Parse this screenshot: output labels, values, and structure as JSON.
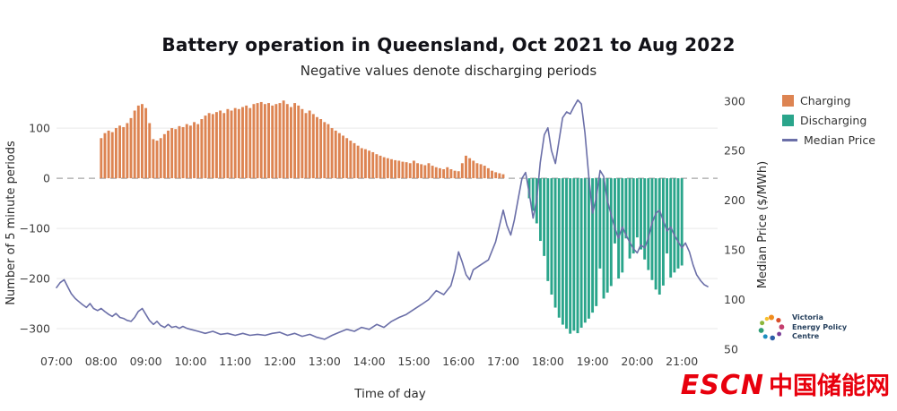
{
  "chart": {
    "title": "Battery operation in Queensland, Oct 2021 to Aug 2022",
    "subtitle": "Negative values denote discharging periods"
  },
  "axes": {
    "left": {
      "label": "Number of 5 minute periods",
      "ticks": [
        {
          "label": "100",
          "value": 100
        },
        {
          "label": "0",
          "value": 0
        },
        {
          "label": "−100",
          "value": -100
        },
        {
          "label": "−200",
          "value": -200
        },
        {
          "label": "−300",
          "value": -300
        }
      ]
    },
    "right": {
      "label": "Median Price ($/MWh)",
      "ticks": [
        {
          "label": "300",
          "value": 300
        },
        {
          "label": "250",
          "value": 250
        },
        {
          "label": "200",
          "value": 200
        },
        {
          "label": "150",
          "value": 150
        },
        {
          "label": "100",
          "value": 100
        },
        {
          "label": "50",
          "value": 50
        }
      ]
    },
    "x": {
      "label": "Time of day",
      "ticks": [
        {
          "label": "07:00",
          "value": 7
        },
        {
          "label": "08:00",
          "value": 8
        },
        {
          "label": "09:00",
          "value": 9
        },
        {
          "label": "10:00",
          "value": 10
        },
        {
          "label": "11:00",
          "value": 11
        },
        {
          "label": "12:00",
          "value": 12
        },
        {
          "label": "13:00",
          "value": 13
        },
        {
          "label": "14:00",
          "value": 14
        },
        {
          "label": "15:00",
          "value": 15
        },
        {
          "label": "16:00",
          "value": 16
        },
        {
          "label": "17:00",
          "value": 17
        },
        {
          "label": "18:00",
          "value": 18
        },
        {
          "label": "19:00",
          "value": 19
        },
        {
          "label": "20:00",
          "value": 20
        },
        {
          "label": "21:00",
          "value": 21
        }
      ]
    }
  },
  "legend": {
    "items": [
      {
        "label": "Charging",
        "color": "#dd8452",
        "type": "swatch"
      },
      {
        "label": "Discharging",
        "color": "#2aa58b",
        "type": "swatch"
      },
      {
        "label": "Median Price",
        "color": "#6b6fa8",
        "type": "line"
      }
    ]
  },
  "chart_data": {
    "type": "bar+line",
    "title": "Battery operation in Queensland, Oct 2021 to Aug 2022",
    "xlabel": "Time of day",
    "ylabel_left": "Number of 5 minute periods",
    "ylabel_right": "Median Price ($/MWh)",
    "xlim": [
      7.0,
      21.8
    ],
    "ylim_left": [
      -341,
      168
    ],
    "ylim_right": [
      50,
      307
    ],
    "grid": "horizontal",
    "zero_line": "dashed",
    "legend_position": "top-right-outside",
    "charging": {
      "name": "Charging",
      "units": "number of 5 minute periods",
      "start_hour": 8.0,
      "interval_min": 5,
      "color": "#dd8452",
      "values": [
        80,
        90,
        95,
        92,
        100,
        105,
        102,
        110,
        120,
        135,
        145,
        148,
        140,
        110,
        78,
        75,
        80,
        88,
        95,
        100,
        98,
        104,
        102,
        108,
        105,
        112,
        108,
        118,
        125,
        130,
        128,
        132,
        135,
        130,
        138,
        135,
        140,
        138,
        142,
        145,
        140,
        148,
        150,
        152,
        148,
        150,
        145,
        148,
        150,
        155,
        148,
        142,
        150,
        145,
        138,
        130,
        135,
        128,
        122,
        118,
        112,
        108,
        100,
        95,
        90,
        85,
        80,
        75,
        70,
        65,
        60,
        58,
        55,
        52,
        48,
        45,
        42,
        40,
        38,
        36,
        35,
        33,
        32,
        30,
        35,
        30,
        28,
        26,
        30,
        25,
        22,
        20,
        18,
        22,
        18,
        15,
        14,
        30,
        45,
        40,
        35,
        30,
        28,
        25,
        20,
        15,
        12,
        10,
        8
      ]
    },
    "discharging": {
      "name": "Discharging",
      "units": "number of 5 minute periods (negative = discharging)",
      "start_hour": 17.5833,
      "interval_min": 5,
      "color": "#2aa58b",
      "values": [
        -40,
        -65,
        -90,
        -125,
        -155,
        -205,
        -232,
        -258,
        -278,
        -292,
        -300,
        -310,
        -304,
        -309,
        -298,
        -288,
        -280,
        -268,
        -255,
        -180,
        -240,
        -228,
        -215,
        -130,
        -200,
        -188,
        -120,
        -160,
        -150,
        -118,
        -142,
        -162,
        -183,
        -203,
        -222,
        -232,
        -214,
        -150,
        -198,
        -188,
        -180,
        -174
      ]
    },
    "median_price": {
      "name": "Median Price",
      "units": "$/MWh",
      "color": "#6b6fa8",
      "points": [
        [
          7.0,
          112
        ],
        [
          7.08,
          117
        ],
        [
          7.17,
          120
        ],
        [
          7.25,
          113
        ],
        [
          7.33,
          106
        ],
        [
          7.42,
          101
        ],
        [
          7.5,
          98
        ],
        [
          7.58,
          95
        ],
        [
          7.67,
          92
        ],
        [
          7.75,
          96
        ],
        [
          7.83,
          91
        ],
        [
          7.92,
          89
        ],
        [
          8.0,
          91
        ],
        [
          8.08,
          88
        ],
        [
          8.17,
          85
        ],
        [
          8.25,
          83
        ],
        [
          8.33,
          86
        ],
        [
          8.42,
          82
        ],
        [
          8.5,
          81
        ],
        [
          8.58,
          79
        ],
        [
          8.67,
          78
        ],
        [
          8.75,
          82
        ],
        [
          8.83,
          88
        ],
        [
          8.92,
          91
        ],
        [
          9.0,
          85
        ],
        [
          9.08,
          79
        ],
        [
          9.17,
          75
        ],
        [
          9.25,
          78
        ],
        [
          9.33,
          74
        ],
        [
          9.42,
          72
        ],
        [
          9.5,
          75
        ],
        [
          9.58,
          72
        ],
        [
          9.67,
          73
        ],
        [
          9.75,
          71
        ],
        [
          9.83,
          73
        ],
        [
          9.92,
          71
        ],
        [
          10.0,
          70
        ],
        [
          10.17,
          68
        ],
        [
          10.33,
          66
        ],
        [
          10.5,
          68
        ],
        [
          10.67,
          65
        ],
        [
          10.83,
          66
        ],
        [
          11.0,
          64
        ],
        [
          11.17,
          66
        ],
        [
          11.33,
          64
        ],
        [
          11.5,
          65
        ],
        [
          11.67,
          64
        ],
        [
          11.83,
          66
        ],
        [
          12.0,
          67
        ],
        [
          12.17,
          64
        ],
        [
          12.33,
          66
        ],
        [
          12.5,
          63
        ],
        [
          12.67,
          65
        ],
        [
          12.83,
          62
        ],
        [
          13.0,
          60
        ],
        [
          13.17,
          64
        ],
        [
          13.33,
          67
        ],
        [
          13.5,
          70
        ],
        [
          13.67,
          68
        ],
        [
          13.83,
          72
        ],
        [
          14.0,
          70
        ],
        [
          14.17,
          75
        ],
        [
          14.33,
          72
        ],
        [
          14.5,
          78
        ],
        [
          14.67,
          82
        ],
        [
          14.83,
          85
        ],
        [
          15.0,
          90
        ],
        [
          15.17,
          95
        ],
        [
          15.33,
          100
        ],
        [
          15.5,
          109
        ],
        [
          15.67,
          105
        ],
        [
          15.83,
          114
        ],
        [
          15.92,
          129
        ],
        [
          16.0,
          148
        ],
        [
          16.08,
          138
        ],
        [
          16.17,
          125
        ],
        [
          16.25,
          120
        ],
        [
          16.33,
          130
        ],
        [
          16.5,
          135
        ],
        [
          16.67,
          140
        ],
        [
          16.83,
          158
        ],
        [
          17.0,
          190
        ],
        [
          17.08,
          175
        ],
        [
          17.17,
          165
        ],
        [
          17.25,
          180
        ],
        [
          17.33,
          200
        ],
        [
          17.42,
          222
        ],
        [
          17.5,
          228
        ],
        [
          17.58,
          208
        ],
        [
          17.67,
          182
        ],
        [
          17.75,
          200
        ],
        [
          17.83,
          238
        ],
        [
          17.92,
          266
        ],
        [
          18.0,
          273
        ],
        [
          18.08,
          250
        ],
        [
          18.17,
          237
        ],
        [
          18.25,
          260
        ],
        [
          18.33,
          283
        ],
        [
          18.42,
          289
        ],
        [
          18.5,
          287
        ],
        [
          18.58,
          294
        ],
        [
          18.67,
          301
        ],
        [
          18.75,
          297
        ],
        [
          18.83,
          268
        ],
        [
          18.92,
          222
        ],
        [
          19.0,
          187
        ],
        [
          19.08,
          202
        ],
        [
          19.17,
          230
        ],
        [
          19.25,
          224
        ],
        [
          19.33,
          200
        ],
        [
          19.42,
          185
        ],
        [
          19.5,
          172
        ],
        [
          19.58,
          162
        ],
        [
          19.67,
          173
        ],
        [
          19.75,
          165
        ],
        [
          19.83,
          158
        ],
        [
          19.92,
          151
        ],
        [
          20.0,
          147
        ],
        [
          20.08,
          155
        ],
        [
          20.17,
          152
        ],
        [
          20.25,
          162
        ],
        [
          20.33,
          177
        ],
        [
          20.42,
          187
        ],
        [
          20.5,
          190
        ],
        [
          20.58,
          180
        ],
        [
          20.67,
          169
        ],
        [
          20.75,
          173
        ],
        [
          20.83,
          165
        ],
        [
          20.92,
          158
        ],
        [
          21.0,
          152
        ],
        [
          21.08,
          157
        ],
        [
          21.17,
          148
        ],
        [
          21.25,
          135
        ],
        [
          21.33,
          125
        ],
        [
          21.42,
          119
        ],
        [
          21.5,
          115
        ],
        [
          21.58,
          113
        ]
      ]
    }
  },
  "branding": {
    "vepc": {
      "lines": [
        "Victoria",
        "Energy Policy",
        "Centre"
      ]
    },
    "escn": {
      "latin": "ESCN",
      "cjk": "中国储能网",
      "color": "#e8000d"
    }
  }
}
